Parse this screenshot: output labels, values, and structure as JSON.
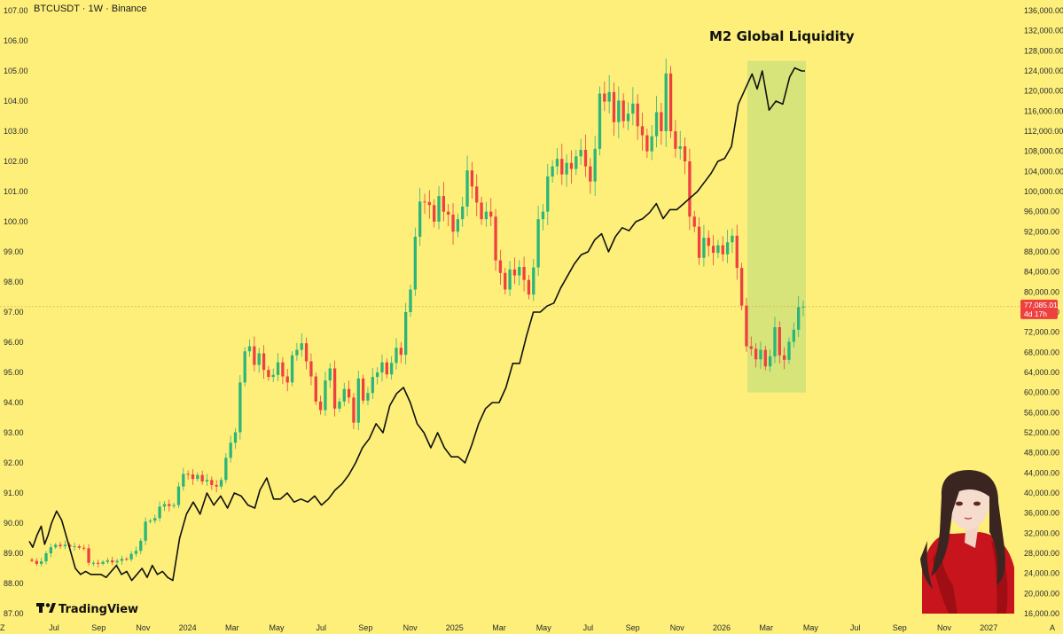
{
  "header": {
    "symbol_title": "BTCUSDT · 1W · Binance"
  },
  "annotation": {
    "label": "M2 Global Liquidity"
  },
  "brand": {
    "name": "TradingView"
  },
  "price_tag": {
    "price": "77,085.01",
    "countdown": "4d 17h"
  },
  "colors": {
    "background": "#fdef7a",
    "up_candle": "#2bb57a",
    "down_candle": "#ef4040",
    "m2_line": "#111111",
    "highlight_zone": "#cfe27a",
    "price_tag": "#ef4040"
  },
  "icons": {
    "brand_logo": "tradingview-logo-icon",
    "avatar": "anime-girl-avatar"
  },
  "chart_data": {
    "type": "candlestick",
    "title": "BTCUSDT · 1W · Binance",
    "x_tick_labels": [
      "Jul",
      "Sep",
      "Nov",
      "2024",
      "Mar",
      "May",
      "Jul",
      "Sep",
      "Nov",
      "2025",
      "Mar",
      "May",
      "Jul",
      "Sep",
      "Nov",
      "2026",
      "Mar",
      "May",
      "Jul",
      "Sep",
      "Nov",
      "2027"
    ],
    "x_axis_first_label": "Z",
    "x_axis_last_label": "A",
    "left_axis": {
      "label": "M2 Global Liquidity",
      "range": [
        87.0,
        107.0
      ],
      "tick_labels": [
        "107.00",
        "106.00",
        "105.00",
        "104.00",
        "103.00",
        "102.00",
        "101.00",
        "100.00",
        "99.00",
        "98.00",
        "97.00",
        "96.00",
        "95.00",
        "94.00",
        "93.00",
        "92.00",
        "91.00",
        "90.00",
        "89.00",
        "88.00",
        "87.00"
      ]
    },
    "right_axis": {
      "label": "BTCUSDT",
      "range": [
        16000,
        136000
      ],
      "tick_labels": [
        "136,000.00",
        "132,000.00",
        "128,000.00",
        "124,000.00",
        "120,000.00",
        "116,000.00",
        "112,000.00",
        "108,000.00",
        "104,000.00",
        "100,000.00",
        "96,000.00",
        "92,000.00",
        "88,000.00",
        "84,000.00",
        "80,000.00",
        "76,000.00",
        "72,000.00",
        "68,000.00",
        "64,000.00",
        "60,000.00",
        "56,000.00",
        "52,000.00",
        "48,000.00",
        "44,000.00",
        "40,000.00",
        "36,000.00",
        "32,000.00",
        "28,000.00",
        "24,000.00",
        "20,000.00",
        "16,000.00"
      ]
    },
    "current_price": 77085.01,
    "highlight_zone": {
      "from": "Jan 2026",
      "to": "Apr 2026",
      "price_low": 60000,
      "price_high": 126000
    },
    "btc_weekly_closes": [
      26500,
      25900,
      26400,
      28000,
      29200,
      29700,
      29400,
      29700,
      29300,
      29400,
      29100,
      29000,
      26100,
      26100,
      25900,
      26300,
      26600,
      26200,
      26500,
      26900,
      26800,
      27900,
      28500,
      30500,
      34300,
      34500,
      35000,
      37300,
      37800,
      37400,
      37600,
      41300,
      43800,
      43700,
      42800,
      43600,
      42300,
      42600,
      41600,
      41300,
      42600,
      47000,
      50000,
      52100,
      62000,
      68200,
      69200,
      65500,
      67800,
      64500,
      63100,
      63500,
      66000,
      63200,
      62000,
      67400,
      68500,
      69800,
      66200,
      63200,
      58200,
      56500,
      62400,
      64800,
      56800,
      58200,
      60700,
      59000,
      54000,
      62800,
      58400,
      59900,
      63100,
      64000,
      66000,
      63600,
      65900,
      68900,
      67500,
      76000,
      80500,
      91000,
      98000,
      97900,
      97300,
      94000,
      99100,
      96000,
      95400,
      92000,
      94500,
      97000,
      104200,
      101000,
      97800,
      94500,
      96000,
      95000,
      86300,
      83800,
      80500,
      84500,
      83300,
      85000,
      82400,
      79500,
      84900,
      94500,
      96000,
      103000,
      105000,
      106500,
      103400,
      105700,
      104500,
      107000,
      108300,
      105000,
      102000,
      108500,
      119500,
      117900,
      119800,
      113800,
      118100,
      114000,
      115500,
      117500,
      113000,
      111200,
      108000,
      111000,
      115800,
      112000,
      123500,
      112000,
      108500,
      109000,
      106000,
      95000,
      93000,
      86800,
      90800,
      89200,
      87800,
      89300,
      87500,
      89900,
      91200,
      84800,
      77300,
      69200,
      68700,
      66600,
      68500,
      65200,
      67200,
      73000,
      67400,
      66500,
      70100,
      72500,
      77000,
      77085.01
    ],
    "m2_global_liquidity": [
      [
        0,
        89.4
      ],
      [
        4,
        89.2
      ],
      [
        9,
        89.6
      ],
      [
        14,
        89.9
      ],
      [
        18,
        89.3
      ],
      [
        22,
        89.6
      ],
      [
        26,
        90.0
      ],
      [
        32,
        90.4
      ],
      [
        38,
        90.1
      ],
      [
        44,
        89.5
      ],
      [
        54,
        88.5
      ],
      [
        60,
        88.3
      ],
      [
        66,
        88.4
      ],
      [
        72,
        88.3
      ],
      [
        78,
        88.3
      ],
      [
        84,
        88.3
      ],
      [
        90,
        88.2
      ],
      [
        96,
        88.4
      ],
      [
        102,
        88.6
      ],
      [
        108,
        88.3
      ],
      [
        114,
        88.4
      ],
      [
        120,
        88.1
      ],
      [
        126,
        88.3
      ],
      [
        132,
        88.5
      ],
      [
        138,
        88.2
      ],
      [
        144,
        88.6
      ],
      [
        150,
        88.3
      ],
      [
        156,
        88.4
      ],
      [
        162,
        88.2
      ],
      [
        168,
        88.1
      ],
      [
        176,
        89.5
      ],
      [
        184,
        90.3
      ],
      [
        192,
        90.7
      ],
      [
        200,
        90.3
      ],
      [
        208,
        91.0
      ],
      [
        216,
        90.6
      ],
      [
        224,
        90.9
      ],
      [
        232,
        90.5
      ],
      [
        240,
        91.0
      ],
      [
        248,
        90.9
      ],
      [
        256,
        90.6
      ],
      [
        264,
        90.5
      ],
      [
        270,
        91.1
      ],
      [
        278,
        91.5
      ],
      [
        286,
        90.8
      ],
      [
        294,
        90.8
      ],
      [
        302,
        91.0
      ],
      [
        310,
        90.7
      ],
      [
        318,
        90.8
      ],
      [
        326,
        90.7
      ],
      [
        334,
        90.9
      ],
      [
        342,
        90.6
      ],
      [
        350,
        90.8
      ],
      [
        358,
        91.1
      ],
      [
        366,
        91.3
      ],
      [
        374,
        91.6
      ],
      [
        382,
        92.0
      ],
      [
        390,
        92.5
      ],
      [
        398,
        92.8
      ],
      [
        406,
        93.3
      ],
      [
        414,
        93.0
      ],
      [
        422,
        93.9
      ],
      [
        430,
        94.3
      ],
      [
        438,
        94.5
      ],
      [
        446,
        94.0
      ],
      [
        454,
        93.3
      ],
      [
        462,
        93.0
      ],
      [
        470,
        92.5
      ],
      [
        478,
        93.0
      ],
      [
        486,
        92.5
      ],
      [
        494,
        92.2
      ],
      [
        502,
        92.2
      ],
      [
        510,
        92.0
      ],
      [
        518,
        92.6
      ],
      [
        526,
        93.3
      ],
      [
        534,
        93.8
      ],
      [
        542,
        94.0
      ],
      [
        550,
        94.0
      ],
      [
        558,
        94.5
      ],
      [
        566,
        95.3
      ],
      [
        574,
        95.3
      ],
      [
        582,
        96.2
      ],
      [
        590,
        97.0
      ],
      [
        598,
        97.0
      ],
      [
        606,
        97.2
      ],
      [
        614,
        97.3
      ],
      [
        622,
        97.8
      ],
      [
        630,
        98.2
      ],
      [
        638,
        98.6
      ],
      [
        646,
        98.9
      ],
      [
        654,
        99.0
      ],
      [
        662,
        99.4
      ],
      [
        670,
        99.6
      ],
      [
        678,
        99.0
      ],
      [
        686,
        99.5
      ],
      [
        694,
        99.8
      ],
      [
        702,
        99.7
      ],
      [
        710,
        100.0
      ],
      [
        718,
        100.1
      ],
      [
        726,
        100.3
      ],
      [
        734,
        100.6
      ],
      [
        742,
        100.1
      ],
      [
        750,
        100.4
      ],
      [
        758,
        100.4
      ],
      [
        766,
        100.6
      ],
      [
        774,
        100.8
      ],
      [
        782,
        101.0
      ],
      [
        790,
        101.3
      ],
      [
        798,
        101.6
      ],
      [
        806,
        102.0
      ],
      [
        814,
        102.1
      ],
      [
        822,
        102.5
      ],
      [
        830,
        103.9
      ],
      [
        838,
        104.4
      ],
      [
        846,
        104.9
      ],
      [
        852,
        104.4
      ],
      [
        858,
        105.0
      ],
      [
        866,
        103.7
      ],
      [
        874,
        104.0
      ],
      [
        882,
        103.9
      ],
      [
        890,
        104.8
      ],
      [
        896,
        105.1
      ],
      [
        904,
        105.0
      ],
      [
        908,
        105.0
      ]
    ]
  }
}
